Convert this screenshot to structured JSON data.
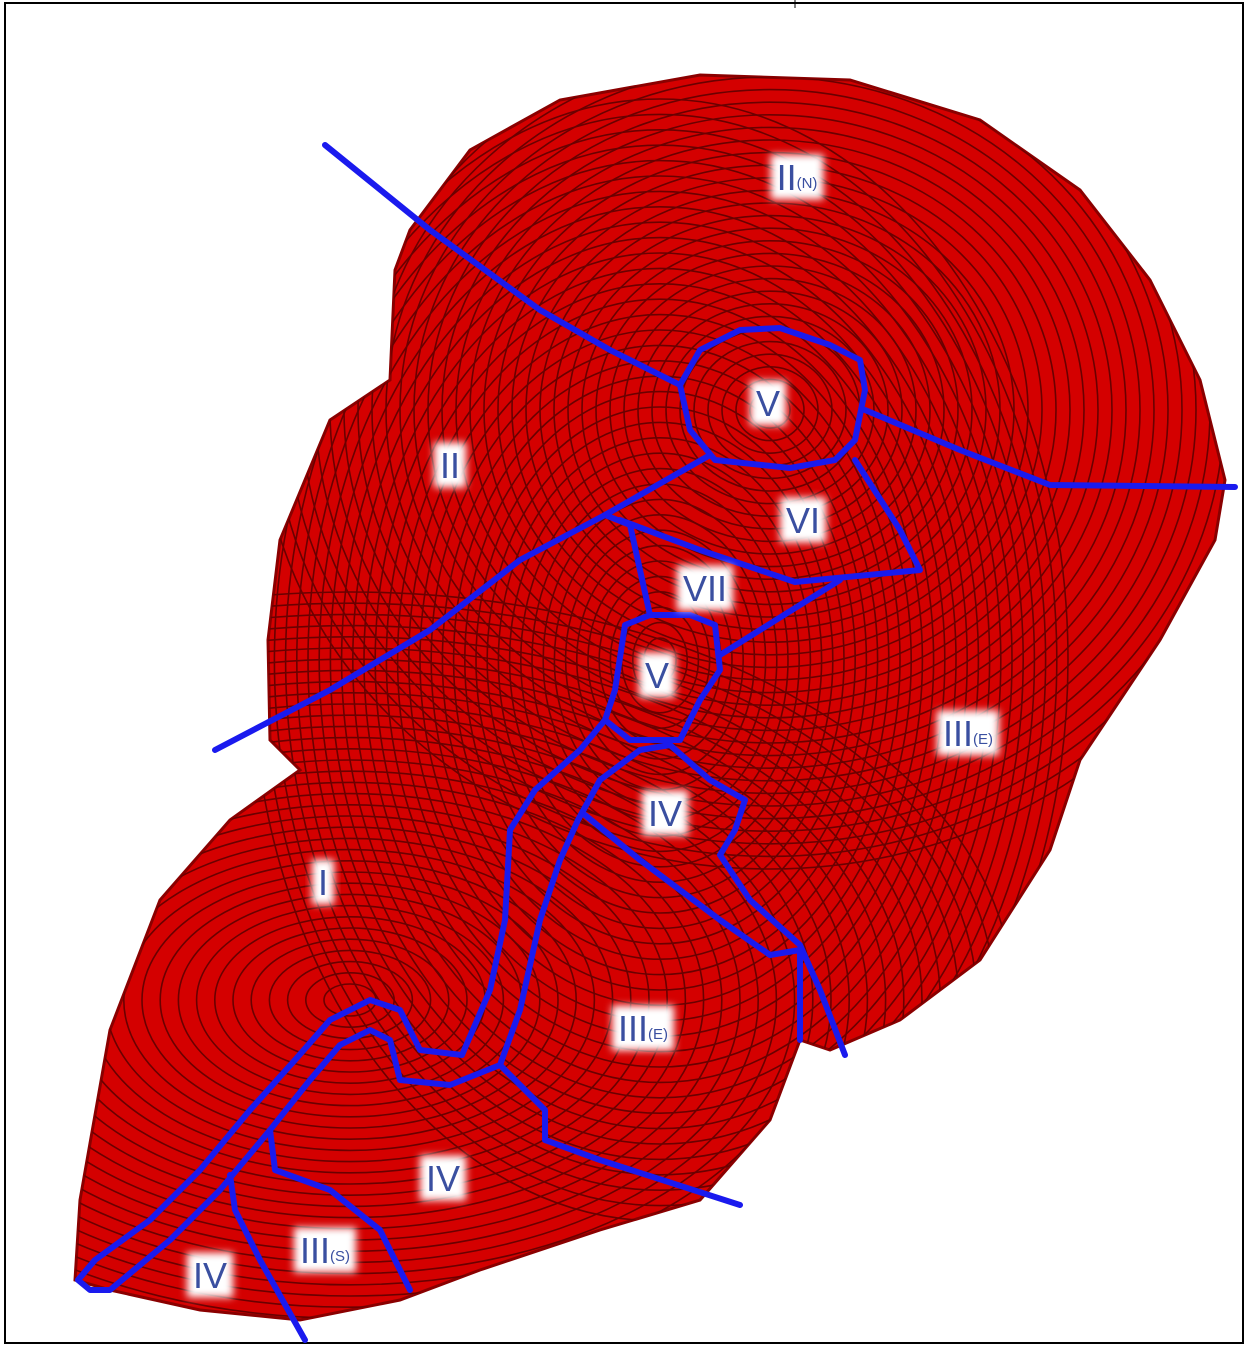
{
  "labels": [
    {
      "main": "II",
      "sub": "(N)"
    },
    {
      "main": "V"
    },
    {
      "main": "II"
    },
    {
      "main": "VI"
    },
    {
      "main": "VII"
    },
    {
      "main": "V"
    },
    {
      "main": "III",
      "sub": "(E)"
    },
    {
      "main": "IV"
    },
    {
      "main": "I"
    },
    {
      "main": "III",
      "sub": "(E)"
    },
    {
      "main": "IV"
    },
    {
      "main": "III",
      "sub": "(S)"
    },
    {
      "main": "IV"
    }
  ]
}
